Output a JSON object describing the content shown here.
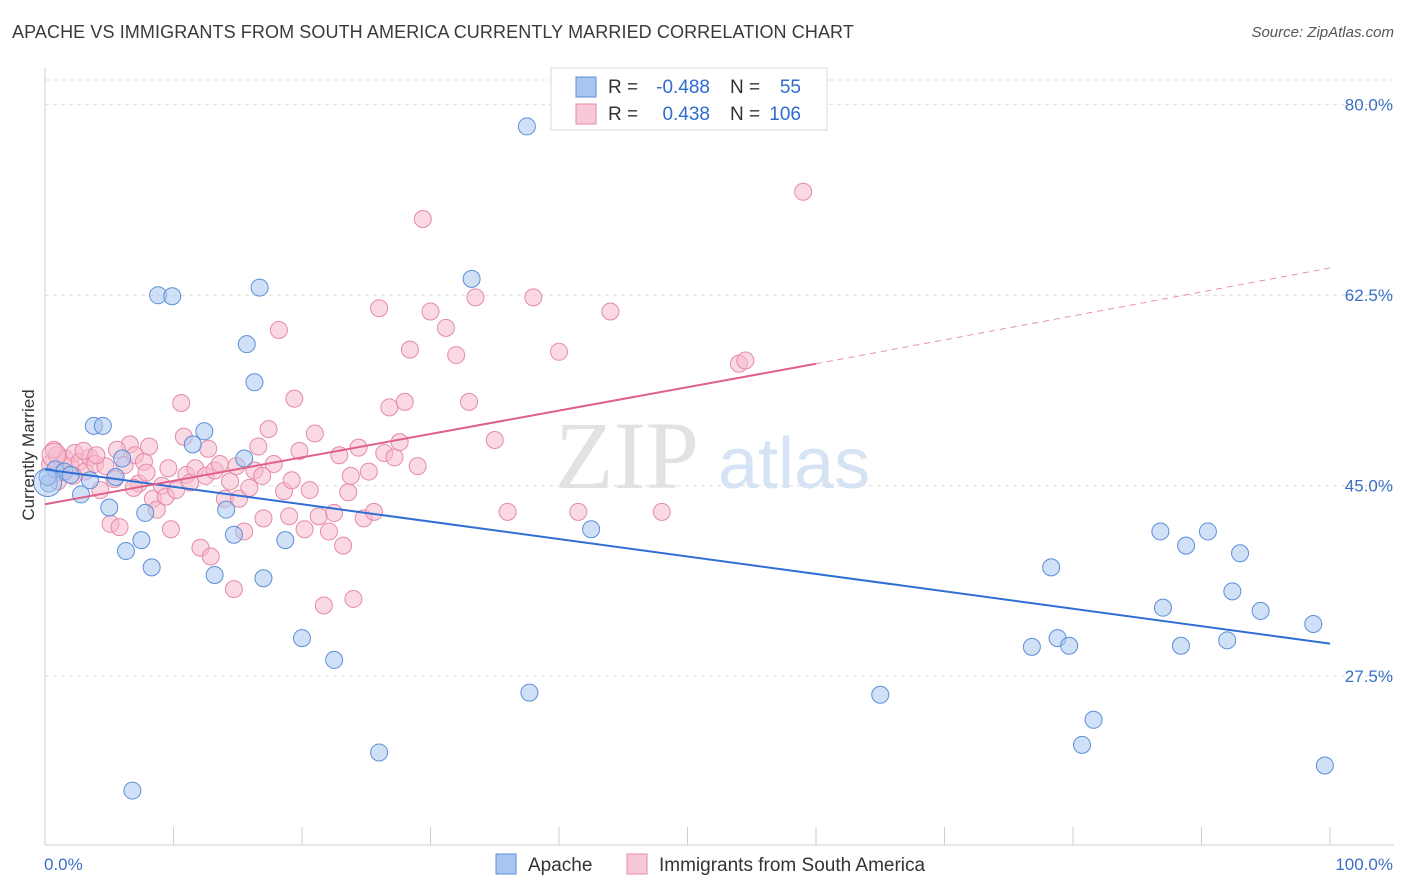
{
  "header": {
    "title": "APACHE VS IMMIGRANTS FROM SOUTH AMERICA CURRENTLY MARRIED CORRELATION CHART",
    "source": "Source: ZipAtlas.com"
  },
  "legend": {
    "r_label": "R =",
    "n_label": "N =",
    "series": [
      {
        "r": "-0.488",
        "n": "55"
      },
      {
        "r": "0.438",
        "n": "106"
      }
    ]
  },
  "watermark": {
    "zip": "ZIP",
    "atlas": "atlas"
  },
  "colors": {
    "apache_fill": "#a9c6f0",
    "apache_stroke": "#5b8fd8",
    "apache_line": "#2f6fd3",
    "sa_fill": "#f7b9cc",
    "sa_stroke": "#e58aa8",
    "sa_line": "#e0608c",
    "axis_label": "#3a6fc4",
    "grid": "#dddddd"
  },
  "chart_data": {
    "type": "scatter",
    "title": "APACHE VS IMMIGRANTS FROM SOUTH AMERICA CURRENTLY MARRIED CORRELATION CHART",
    "xlabel": "",
    "ylabel": "Currently Married",
    "xlim": [
      0,
      100
    ],
    "ylim": [
      12,
      83
    ],
    "x_tick_labels": [
      "0.0%",
      "100.0%"
    ],
    "y_ticks": [
      27.5,
      45.0,
      62.5,
      80.0
    ],
    "y_tick_labels": [
      "27.5%",
      "45.0%",
      "62.5%",
      "80.0%"
    ],
    "grid": true,
    "legend_position": "top-center",
    "series": [
      {
        "name": "Apache",
        "r": -0.488,
        "n": 55,
        "trend": {
          "x0": 0,
          "y0": 46.5,
          "x1": 100,
          "y1": 30.5,
          "dashed_from": null
        },
        "points": [
          [
            0.3,
            45.2
          ],
          [
            0.8,
            46.5
          ],
          [
            1.5,
            46.3
          ],
          [
            2.0,
            46.0
          ],
          [
            2.8,
            44.2
          ],
          [
            3.5,
            45.5
          ],
          [
            3.8,
            50.5
          ],
          [
            4.5,
            50.5
          ],
          [
            5.0,
            43.0
          ],
          [
            5.5,
            45.8
          ],
          [
            6.0,
            47.5
          ],
          [
            6.3,
            39.0
          ],
          [
            6.8,
            17.0
          ],
          [
            7.5,
            40.0
          ],
          [
            7.8,
            42.5
          ],
          [
            8.3,
            37.5
          ],
          [
            8.8,
            62.5
          ],
          [
            9.9,
            62.4
          ],
          [
            11.5,
            48.8
          ],
          [
            12.4,
            50.0
          ],
          [
            13.2,
            36.8
          ],
          [
            14.1,
            42.8
          ],
          [
            14.7,
            40.5
          ],
          [
            15.5,
            47.5
          ],
          [
            15.7,
            58.0
          ],
          [
            16.3,
            54.5
          ],
          [
            16.7,
            63.2
          ],
          [
            17.0,
            36.5
          ],
          [
            18.7,
            40.0
          ],
          [
            20.0,
            31.0
          ],
          [
            22.5,
            29.0
          ],
          [
            26.0,
            20.5
          ],
          [
            33.2,
            64.0
          ],
          [
            37.5,
            78.0
          ],
          [
            37.7,
            26.0
          ],
          [
            42.5,
            41.0
          ],
          [
            65.0,
            25.8
          ],
          [
            78.3,
            37.5
          ],
          [
            76.8,
            30.2
          ],
          [
            78.8,
            31.0
          ],
          [
            79.7,
            30.3
          ],
          [
            81.6,
            23.5
          ],
          [
            80.7,
            21.2
          ],
          [
            86.8,
            40.8
          ],
          [
            87.0,
            33.8
          ],
          [
            88.4,
            30.3
          ],
          [
            88.8,
            39.5
          ],
          [
            90.5,
            40.8
          ],
          [
            92.0,
            30.8
          ],
          [
            92.4,
            35.3
          ],
          [
            93.0,
            38.8
          ],
          [
            94.6,
            33.5
          ],
          [
            98.7,
            32.3
          ],
          [
            99.6,
            19.3
          ],
          [
            0.2,
            45.8
          ]
        ]
      },
      {
        "name": "Immigrants from South America",
        "r": 0.438,
        "n": 106,
        "trend": {
          "x0": 0,
          "y0": 43.3,
          "x1": 60,
          "y1": 56.2,
          "dashed_to_x": 100,
          "dashed_to_y": 65.0
        },
        "points": [
          [
            0.4,
            47.0
          ],
          [
            0.9,
            47.8
          ],
          [
            1.3,
            46.2
          ],
          [
            1.6,
            47.5
          ],
          [
            2.0,
            46.8
          ],
          [
            2.3,
            48.0
          ],
          [
            2.7,
            47.2
          ],
          [
            3.1,
            46.3
          ],
          [
            3.5,
            47.6
          ],
          [
            3.9,
            47.0
          ],
          [
            4.3,
            44.6
          ],
          [
            4.7,
            46.8
          ],
          [
            5.1,
            41.5
          ],
          [
            5.4,
            45.6
          ],
          [
            5.8,
            41.2
          ],
          [
            6.2,
            46.9
          ],
          [
            6.6,
            48.8
          ],
          [
            7.0,
            47.8
          ],
          [
            7.3,
            45.2
          ],
          [
            7.7,
            47.2
          ],
          [
            8.1,
            48.6
          ],
          [
            8.4,
            43.8
          ],
          [
            8.7,
            42.8
          ],
          [
            9.1,
            45.0
          ],
          [
            9.4,
            44.0
          ],
          [
            9.8,
            41.0
          ],
          [
            10.2,
            44.6
          ],
          [
            10.6,
            52.6
          ],
          [
            11.0,
            46.0
          ],
          [
            11.3,
            45.3
          ],
          [
            11.7,
            46.6
          ],
          [
            12.1,
            39.3
          ],
          [
            12.5,
            45.9
          ],
          [
            12.9,
            38.5
          ],
          [
            13.2,
            46.4
          ],
          [
            13.6,
            47.0
          ],
          [
            14.0,
            43.8
          ],
          [
            14.4,
            45.4
          ],
          [
            14.7,
            35.5
          ],
          [
            15.1,
            43.8
          ],
          [
            15.5,
            40.8
          ],
          [
            15.9,
            44.8
          ],
          [
            16.3,
            46.4
          ],
          [
            16.6,
            48.6
          ],
          [
            17.0,
            42.0
          ],
          [
            17.4,
            50.2
          ],
          [
            17.8,
            47.0
          ],
          [
            18.2,
            59.3
          ],
          [
            18.6,
            44.5
          ],
          [
            19.0,
            42.2
          ],
          [
            19.4,
            53.0
          ],
          [
            19.8,
            48.2
          ],
          [
            20.2,
            41.0
          ],
          [
            20.6,
            44.6
          ],
          [
            21.0,
            49.8
          ],
          [
            21.3,
            42.2
          ],
          [
            21.7,
            34.0
          ],
          [
            22.1,
            40.8
          ],
          [
            22.5,
            42.5
          ],
          [
            22.9,
            47.8
          ],
          [
            23.2,
            39.5
          ],
          [
            23.6,
            44.4
          ],
          [
            24.0,
            34.6
          ],
          [
            24.4,
            48.5
          ],
          [
            24.8,
            42.0
          ],
          [
            25.2,
            46.3
          ],
          [
            25.6,
            42.6
          ],
          [
            26.0,
            61.3
          ],
          [
            26.4,
            48.0
          ],
          [
            26.8,
            52.2
          ],
          [
            27.2,
            47.6
          ],
          [
            27.6,
            49.0
          ],
          [
            28.0,
            52.7
          ],
          [
            28.4,
            57.5
          ],
          [
            29.0,
            46.8
          ],
          [
            29.4,
            69.5
          ],
          [
            30.0,
            61.0
          ],
          [
            31.2,
            59.5
          ],
          [
            32.0,
            57.0
          ],
          [
            33.0,
            52.7
          ],
          [
            33.5,
            62.3
          ],
          [
            35.0,
            49.2
          ],
          [
            36.0,
            42.6
          ],
          [
            38.0,
            62.3
          ],
          [
            40.0,
            57.3
          ],
          [
            41.5,
            42.6
          ],
          [
            44.0,
            61.0
          ],
          [
            48.0,
            42.6
          ],
          [
            54.0,
            56.2
          ],
          [
            54.5,
            56.5
          ],
          [
            59.0,
            72.0
          ],
          [
            1.0,
            45.4
          ],
          [
            2.2,
            45.9
          ],
          [
            3.0,
            48.2
          ],
          [
            4.0,
            47.8
          ],
          [
            5.6,
            48.3
          ],
          [
            6.9,
            44.8
          ],
          [
            7.9,
            46.2
          ],
          [
            9.6,
            46.6
          ],
          [
            10.8,
            49.5
          ],
          [
            12.7,
            48.4
          ],
          [
            14.9,
            46.8
          ],
          [
            16.9,
            45.9
          ],
          [
            19.2,
            45.5
          ],
          [
            23.8,
            45.9
          ],
          [
            0.7,
            48.3
          ]
        ]
      }
    ]
  }
}
